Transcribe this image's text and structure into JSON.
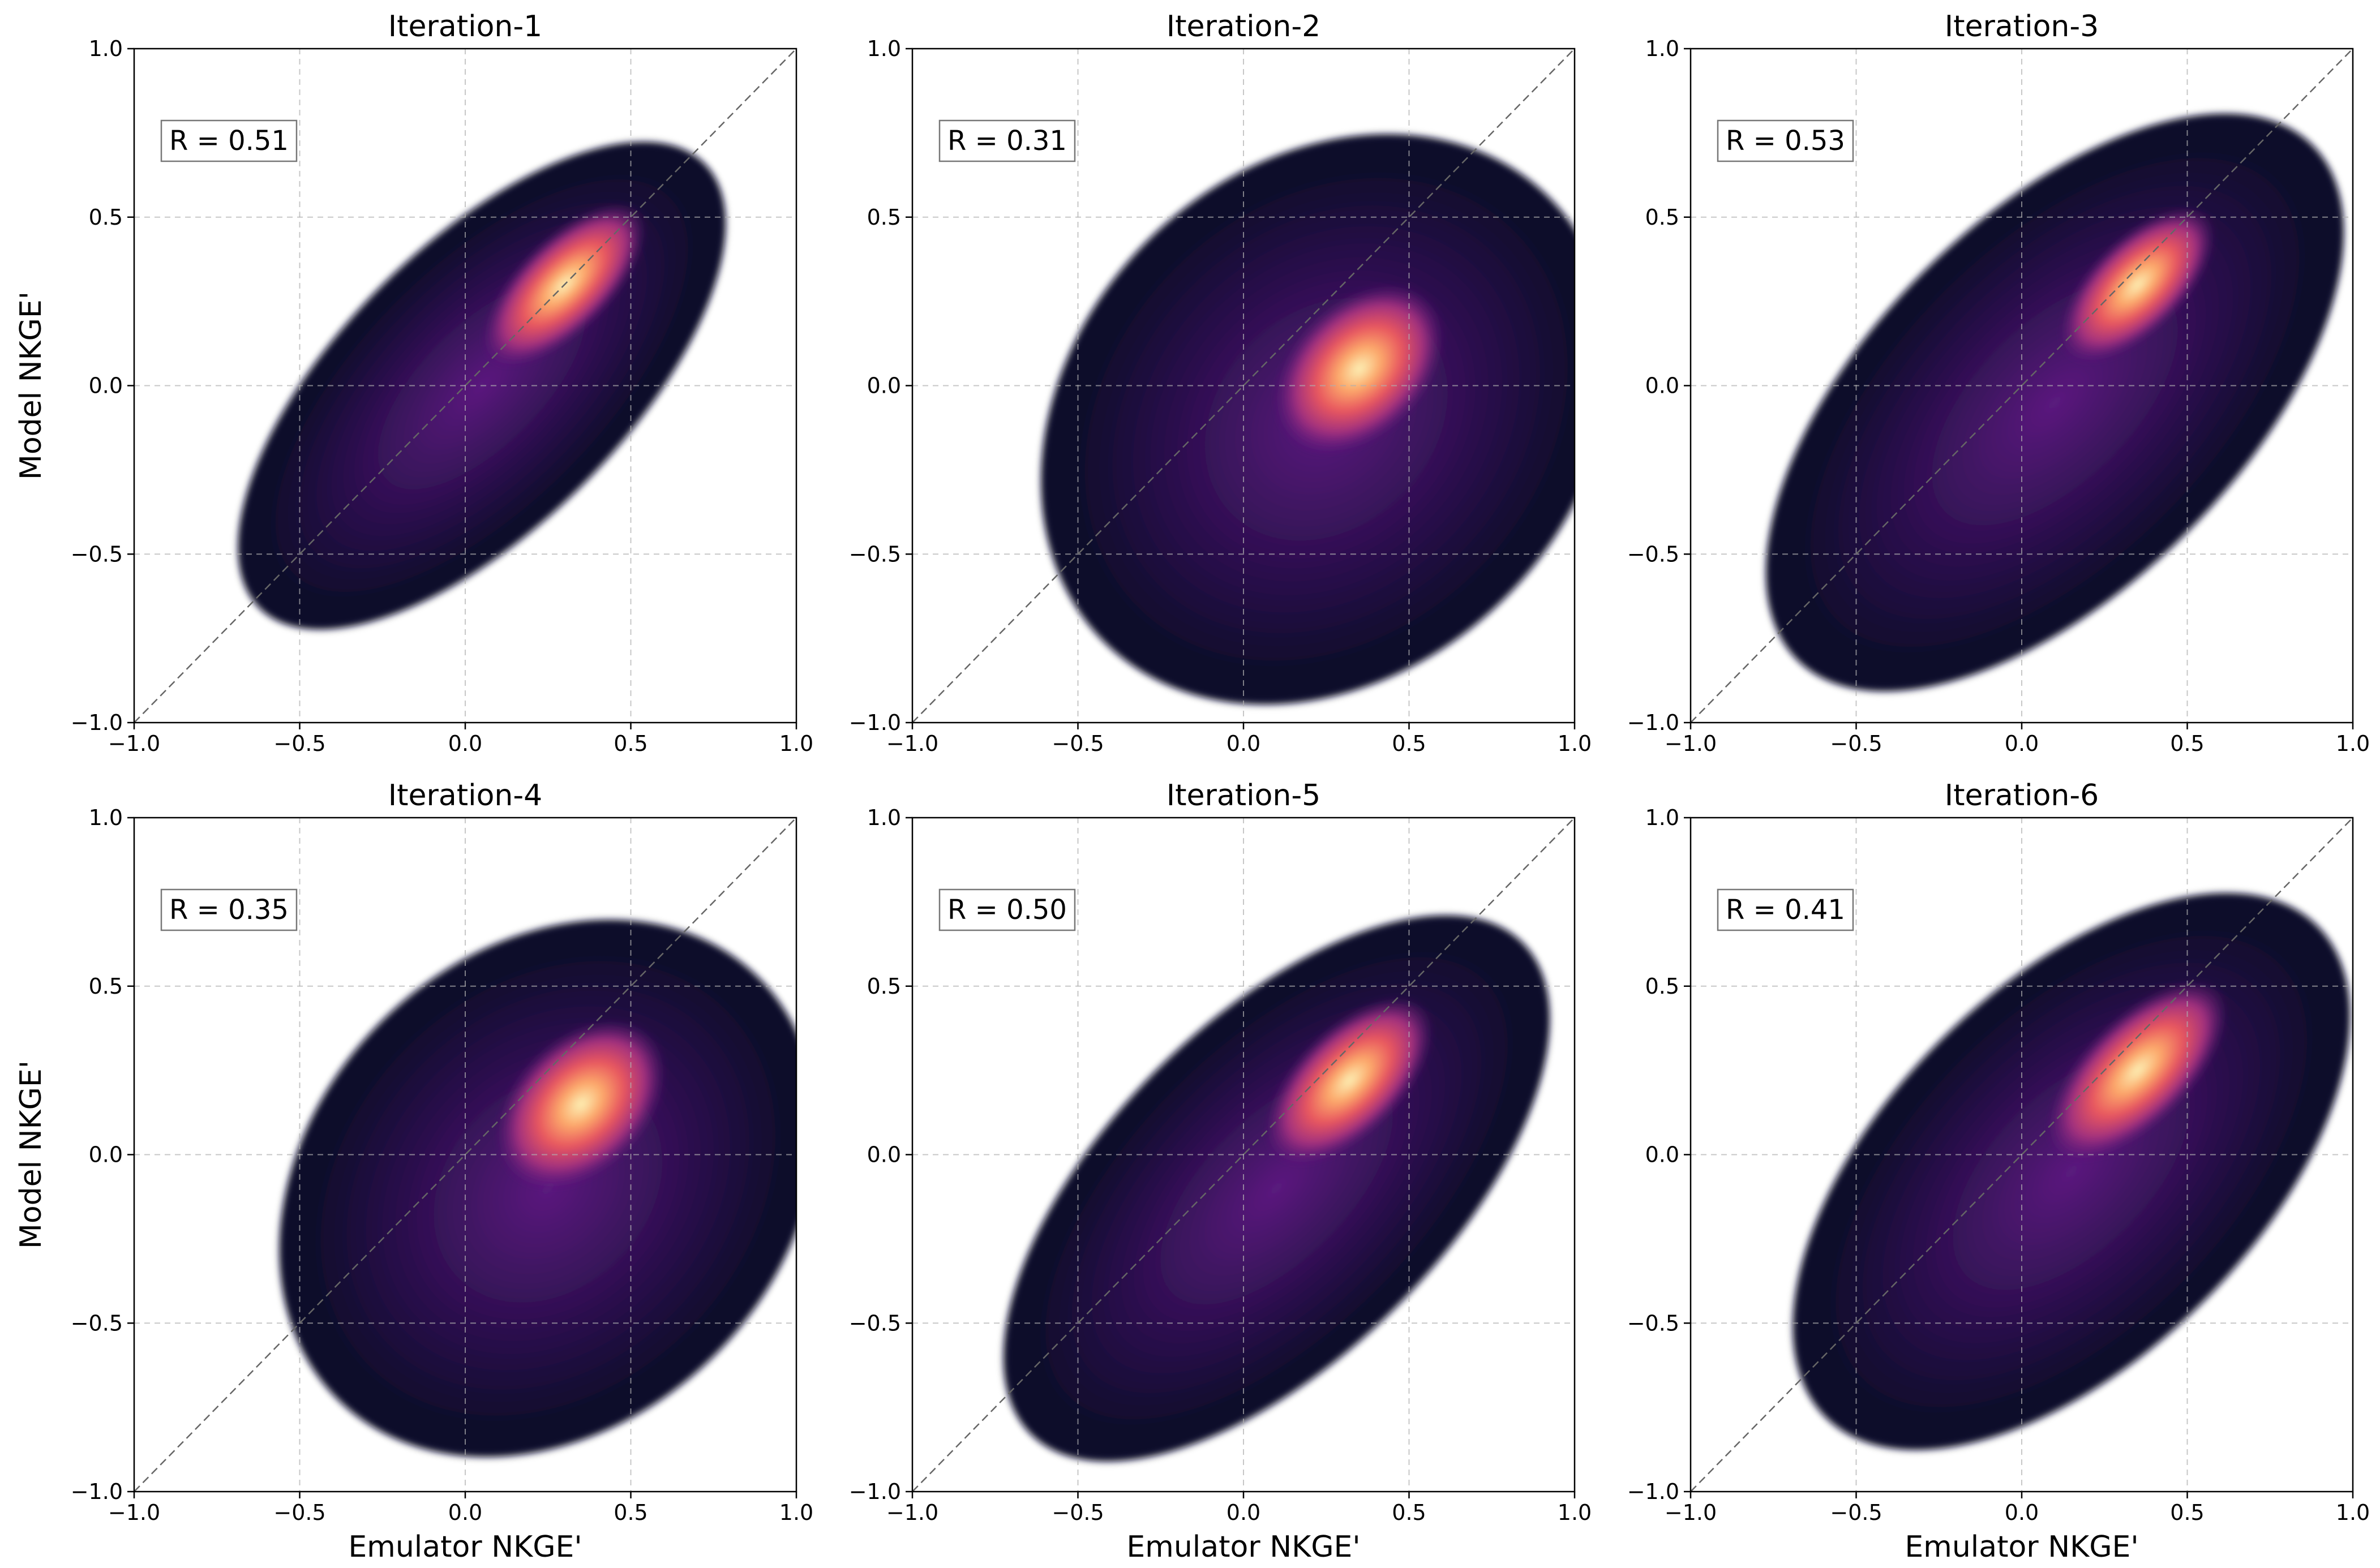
{
  "chart_data": [
    {
      "type": "kde",
      "title": "Iteration-1",
      "annotation": "R = 0.51",
      "ylabel": "Model NKGE'",
      "xlim": [
        -1,
        1
      ],
      "ylim": [
        -1,
        1
      ],
      "xticks": [
        {
          "value": -1,
          "label": "−1.0"
        },
        {
          "value": -0.5,
          "label": "−0.5"
        },
        {
          "value": 0,
          "label": "0.0"
        },
        {
          "value": 0.5,
          "label": "0.5"
        },
        {
          "value": 1,
          "label": "1.0"
        }
      ],
      "yticks": [
        {
          "value": -1,
          "label": "−1.0"
        },
        {
          "value": -0.5,
          "label": "−0.5"
        },
        {
          "value": 0,
          "label": "0.0"
        },
        {
          "value": 0.5,
          "label": "0.5"
        },
        {
          "value": 1,
          "label": "1.0"
        }
      ],
      "grid": true
    },
    {
      "type": "kde",
      "title": "Iteration-2",
      "annotation": "R = 0.31",
      "xlim": [
        -1,
        1
      ],
      "ylim": [
        -1,
        1
      ],
      "xticks": [
        {
          "value": -1,
          "label": "−1.0"
        },
        {
          "value": -0.5,
          "label": "−0.5"
        },
        {
          "value": 0,
          "label": "0.0"
        },
        {
          "value": 0.5,
          "label": "0.5"
        },
        {
          "value": 1,
          "label": "1.0"
        }
      ],
      "yticks": [
        {
          "value": -1,
          "label": "−1.0"
        },
        {
          "value": -0.5,
          "label": "−0.5"
        },
        {
          "value": 0,
          "label": "0.0"
        },
        {
          "value": 0.5,
          "label": "0.5"
        },
        {
          "value": 1,
          "label": "1.0"
        }
      ],
      "grid": true
    },
    {
      "type": "kde",
      "title": "Iteration-3",
      "annotation": "R = 0.53",
      "xlim": [
        -1,
        1
      ],
      "ylim": [
        -1,
        1
      ],
      "xticks": [
        {
          "value": -1,
          "label": "−1.0"
        },
        {
          "value": -0.5,
          "label": "−0.5"
        },
        {
          "value": 0,
          "label": "0.0"
        },
        {
          "value": 0.5,
          "label": "0.5"
        },
        {
          "value": 1,
          "label": "1.0"
        }
      ],
      "yticks": [
        {
          "value": -1,
          "label": "−1.0"
        },
        {
          "value": -0.5,
          "label": "−0.5"
        },
        {
          "value": 0,
          "label": "0.0"
        },
        {
          "value": 0.5,
          "label": "0.5"
        },
        {
          "value": 1,
          "label": "1.0"
        }
      ],
      "grid": true
    },
    {
      "type": "kde",
      "title": "Iteration-4",
      "annotation": "R = 0.35",
      "xlabel": "Emulator NKGE'",
      "ylabel": "Model NKGE'",
      "xlim": [
        -1,
        1
      ],
      "ylim": [
        -1,
        1
      ],
      "xticks": [
        {
          "value": -1,
          "label": "−1.0"
        },
        {
          "value": -0.5,
          "label": "−0.5"
        },
        {
          "value": 0,
          "label": "0.0"
        },
        {
          "value": 0.5,
          "label": "0.5"
        },
        {
          "value": 1,
          "label": "1.0"
        }
      ],
      "yticks": [
        {
          "value": -1,
          "label": "−1.0"
        },
        {
          "value": -0.5,
          "label": "−0.5"
        },
        {
          "value": 0,
          "label": "0.0"
        },
        {
          "value": 0.5,
          "label": "0.5"
        },
        {
          "value": 1,
          "label": "1.0"
        }
      ],
      "grid": true
    },
    {
      "type": "kde",
      "title": "Iteration-5",
      "annotation": "R = 0.50",
      "xlabel": "Emulator NKGE'",
      "xlim": [
        -1,
        1
      ],
      "ylim": [
        -1,
        1
      ],
      "xticks": [
        {
          "value": -1,
          "label": "−1.0"
        },
        {
          "value": -0.5,
          "label": "−0.5"
        },
        {
          "value": 0,
          "label": "0.0"
        },
        {
          "value": 0.5,
          "label": "0.5"
        },
        {
          "value": 1,
          "label": "1.0"
        }
      ],
      "yticks": [
        {
          "value": -1,
          "label": "−1.0"
        },
        {
          "value": -0.5,
          "label": "−0.5"
        },
        {
          "value": 0,
          "label": "0.0"
        },
        {
          "value": 0.5,
          "label": "0.5"
        },
        {
          "value": 1,
          "label": "1.0"
        }
      ],
      "grid": true
    },
    {
      "type": "kde",
      "title": "Iteration-6",
      "annotation": "R = 0.41",
      "xlabel": "Emulator NKGE'",
      "xlim": [
        -1,
        1
      ],
      "ylim": [
        -1,
        1
      ],
      "xticks": [
        {
          "value": -1,
          "label": "−1.0"
        },
        {
          "value": -0.5,
          "label": "−0.5"
        },
        {
          "value": 0,
          "label": "0.0"
        },
        {
          "value": 0.5,
          "label": "0.5"
        },
        {
          "value": 1,
          "label": "1.0"
        }
      ],
      "yticks": [
        {
          "value": -1,
          "label": "−1.0"
        },
        {
          "value": -0.5,
          "label": "−0.5"
        },
        {
          "value": 0,
          "label": "0.0"
        },
        {
          "value": 0.5,
          "label": "0.5"
        },
        {
          "value": 1,
          "label": "1.0"
        }
      ],
      "grid": true
    }
  ]
}
